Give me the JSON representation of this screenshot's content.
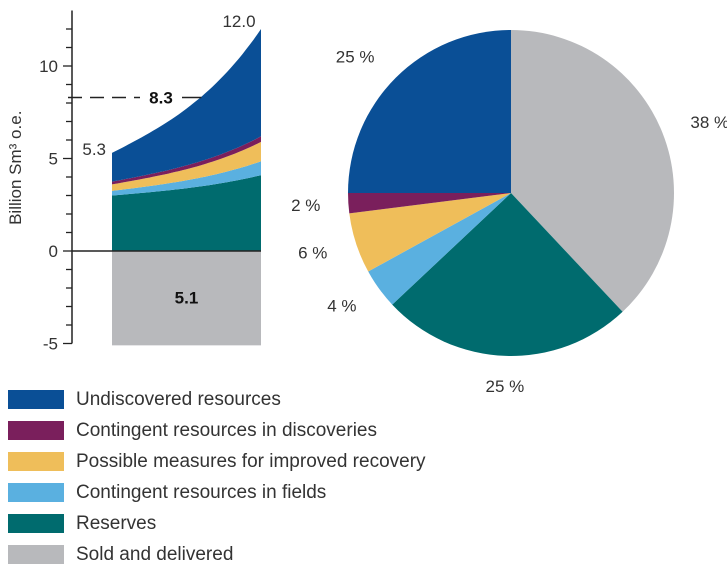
{
  "chart_data": [
    {
      "type": "area",
      "ylabel": "Billion Sm³ o.e.",
      "ylim": [
        -5,
        13
      ],
      "yticks": [
        "-5",
        "0",
        "5",
        "10"
      ],
      "start_total_label": "5.3",
      "end_total_label": "12.0",
      "sold_label": "5.1",
      "dashed_label": "8.3",
      "sold_and_delivered": -5.1,
      "series": [
        {
          "name": "Reserves",
          "start": 3.0,
          "end": 4.1
        },
        {
          "name": "Contingent resources in fields",
          "start": 0.25,
          "end": 0.75
        },
        {
          "name": "Possible measures for improved recovery",
          "start": 0.35,
          "end": 1.05
        },
        {
          "name": "Contingent resources in discoveries",
          "start": 0.15,
          "end": 0.3
        },
        {
          "name": "Undiscovered resources",
          "start": 1.55,
          "end": 5.8
        }
      ]
    },
    {
      "type": "pie",
      "slices": [
        {
          "name": "Sold and delivered",
          "value": 38,
          "label": "38 %"
        },
        {
          "name": "Reserves",
          "value": 25,
          "label": "25 %"
        },
        {
          "name": "Contingent resources in fields",
          "value": 4,
          "label": "4 %"
        },
        {
          "name": "Possible measures for improved recovery",
          "value": 6,
          "label": "6 %"
        },
        {
          "name": "Contingent resources in discoveries",
          "value": 2,
          "label": "2 %"
        },
        {
          "name": "Undiscovered resources",
          "value": 25,
          "label": "25 %"
        }
      ]
    }
  ],
  "legend": [
    {
      "label": "Undiscovered resources",
      "color": "#0a4f96"
    },
    {
      "label": "Contingent resources in discoveries",
      "color": "#7a1f5c"
    },
    {
      "label": "Possible measures for improved recovery",
      "color": "#efbe5a"
    },
    {
      "label": "Contingent resources in fields",
      "color": "#5ab0e0"
    },
    {
      "label": "Reserves",
      "color": "#006b6e"
    },
    {
      "label": "Sold and delivered",
      "color": "#b8b9bc"
    }
  ],
  "colors": {
    "Undiscovered resources": "#0a4f96",
    "Contingent resources in discoveries": "#7a1f5c",
    "Possible measures for improved recovery": "#efbe5a",
    "Contingent resources in fields": "#5ab0e0",
    "Reserves": "#006b6e",
    "Sold and delivered": "#b8b9bc"
  }
}
